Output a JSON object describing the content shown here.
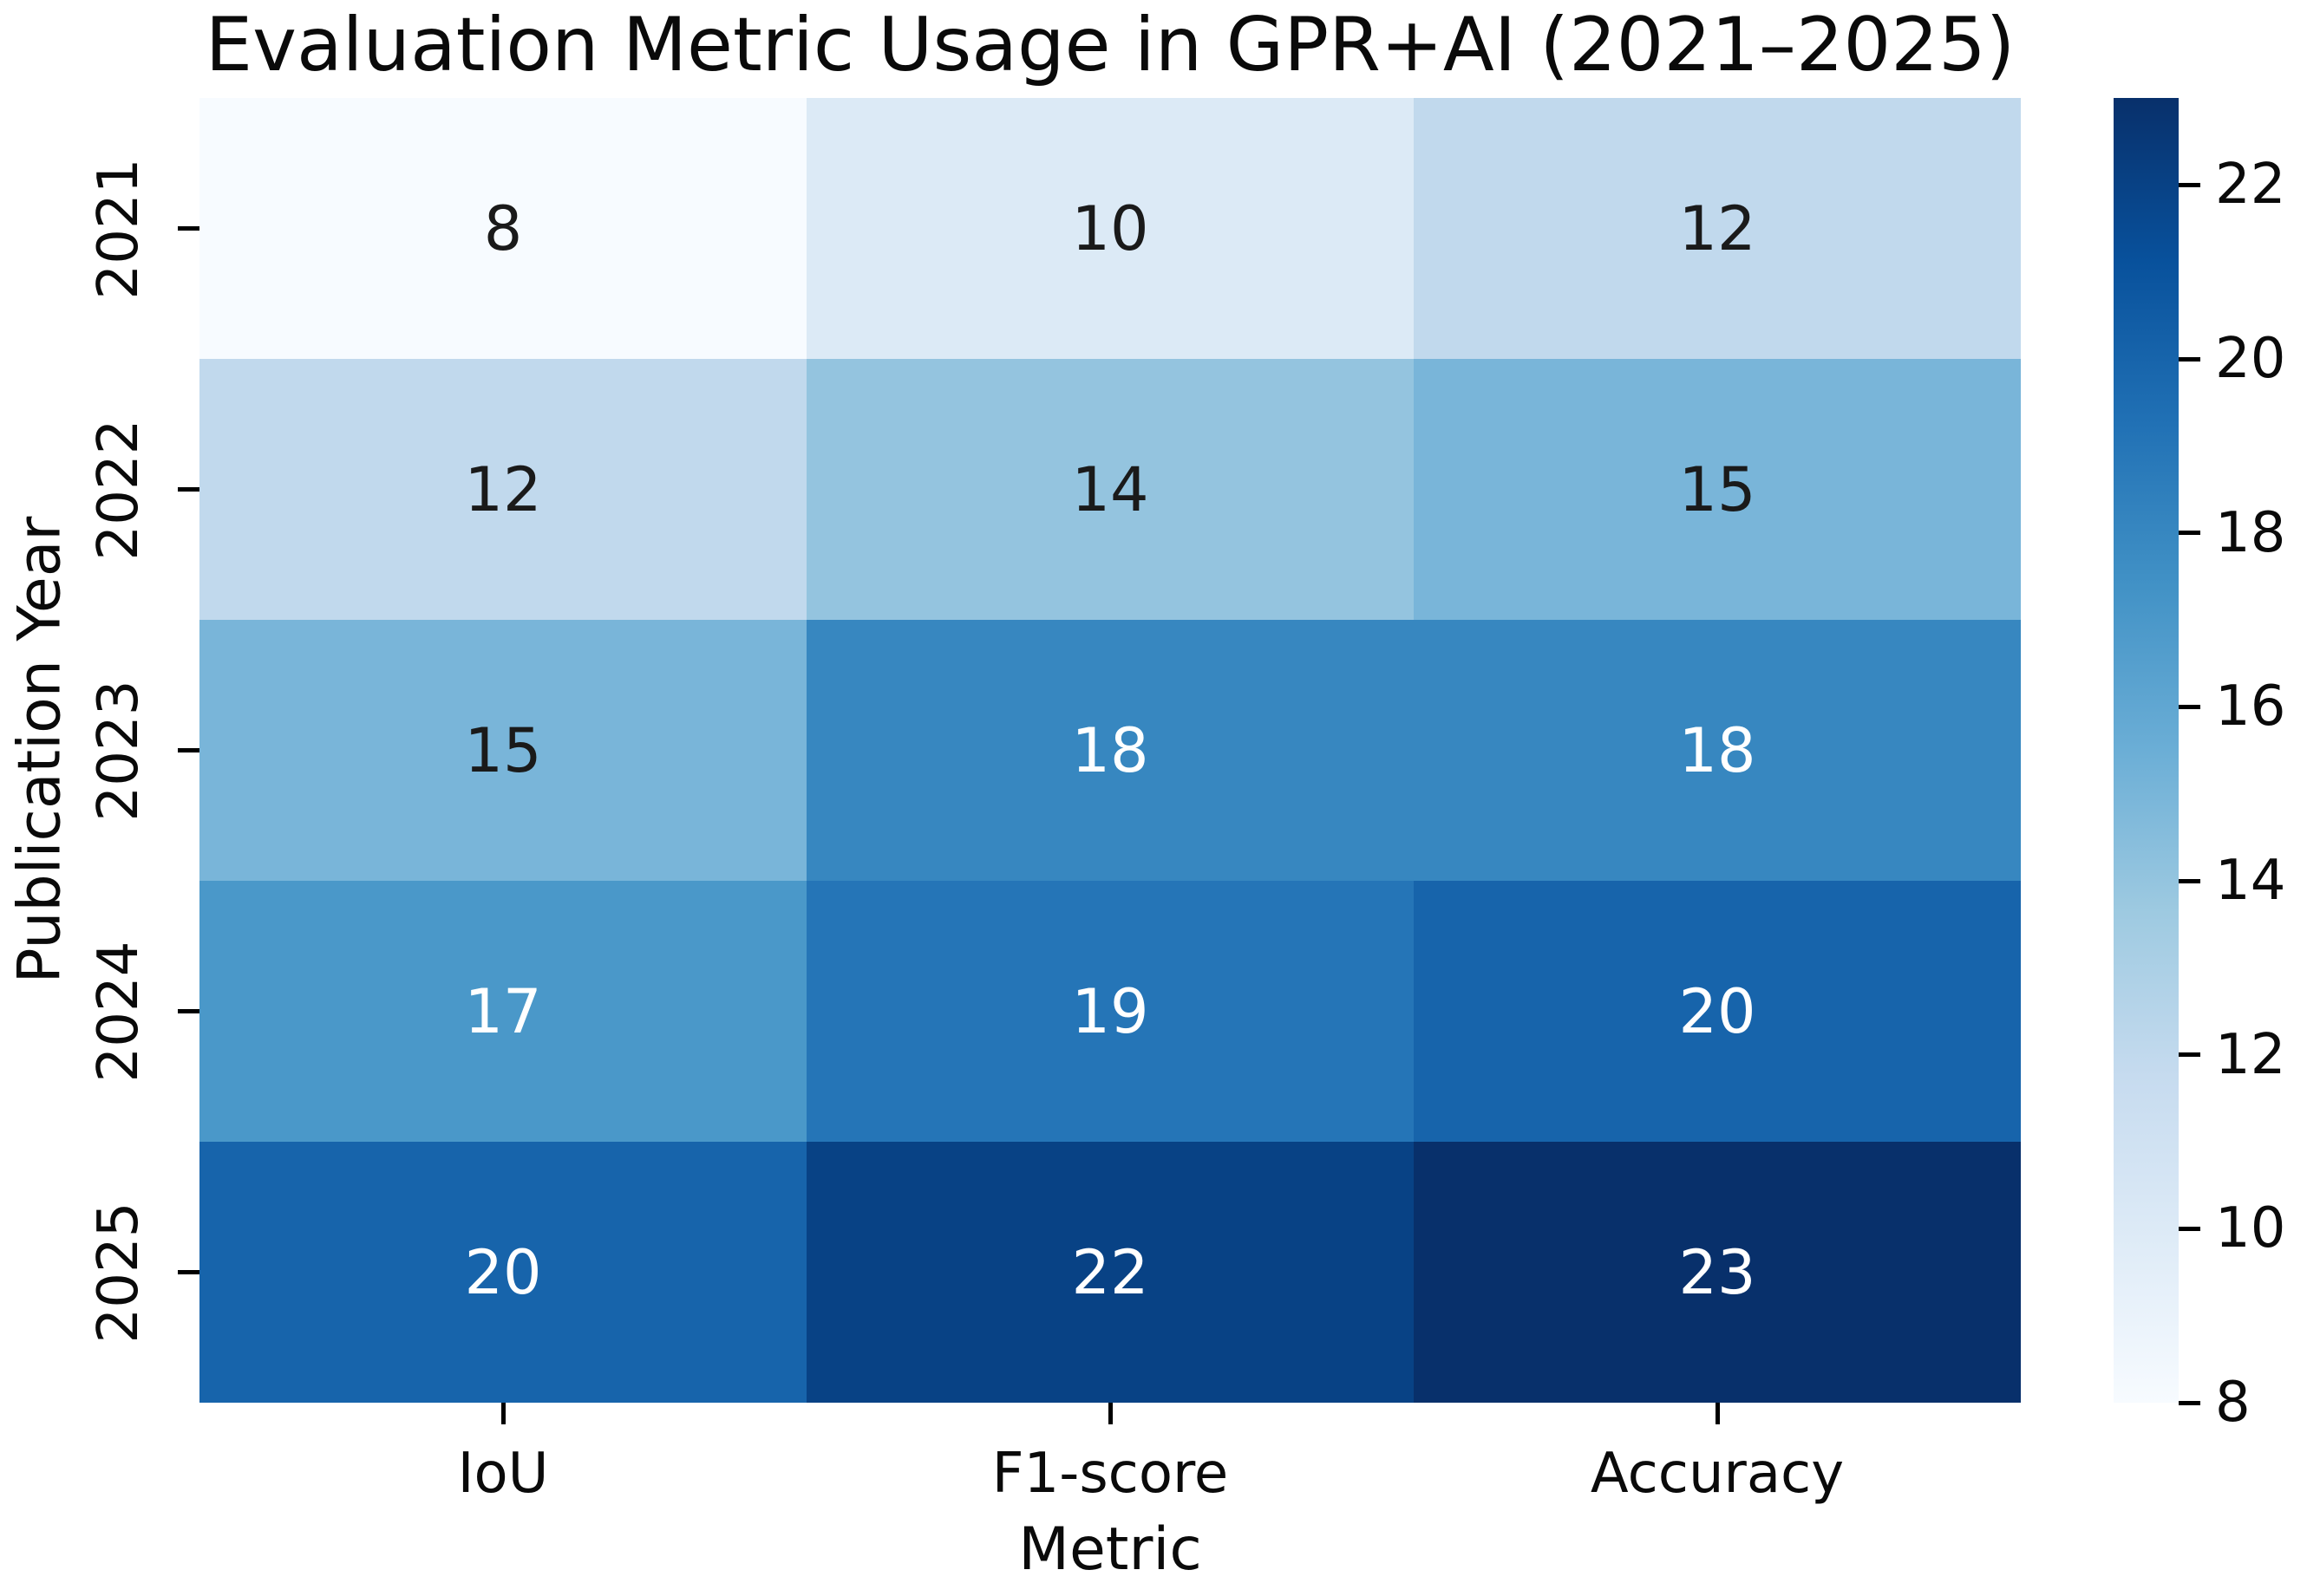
{
  "title": "Evaluation Metric Usage in GPR+AI (2021–2025)",
  "chart_data": {
    "type": "heatmap",
    "title": "Evaluation Metric Usage in GPR+AI (2021–2025)",
    "xlabel": "Metric",
    "ylabel": "Publication Year",
    "columns": [
      "IoU",
      "F1-score",
      "Accuracy"
    ],
    "rows": [
      "2021",
      "2022",
      "2023",
      "2024",
      "2025"
    ],
    "values": [
      [
        8,
        10,
        12
      ],
      [
        12,
        14,
        15
      ],
      [
        15,
        18,
        18
      ],
      [
        17,
        19,
        20
      ],
      [
        20,
        22,
        23
      ]
    ],
    "annotated": true,
    "colormap": "Blues",
    "vmin": 8,
    "vmax": 23,
    "colorbar_ticks": [
      8,
      10,
      12,
      14,
      16,
      18,
      20,
      22
    ],
    "colorbar_position": "right",
    "colormap_stops": [
      "#f7fbff",
      "#deebf7",
      "#c6dbef",
      "#9ecae1",
      "#6baed6",
      "#4292c6",
      "#2171b5",
      "#08519c",
      "#08306b"
    ],
    "annotation_text_dark": "#1a1a1a",
    "annotation_text_light": "#ffffff",
    "grid": false
  }
}
